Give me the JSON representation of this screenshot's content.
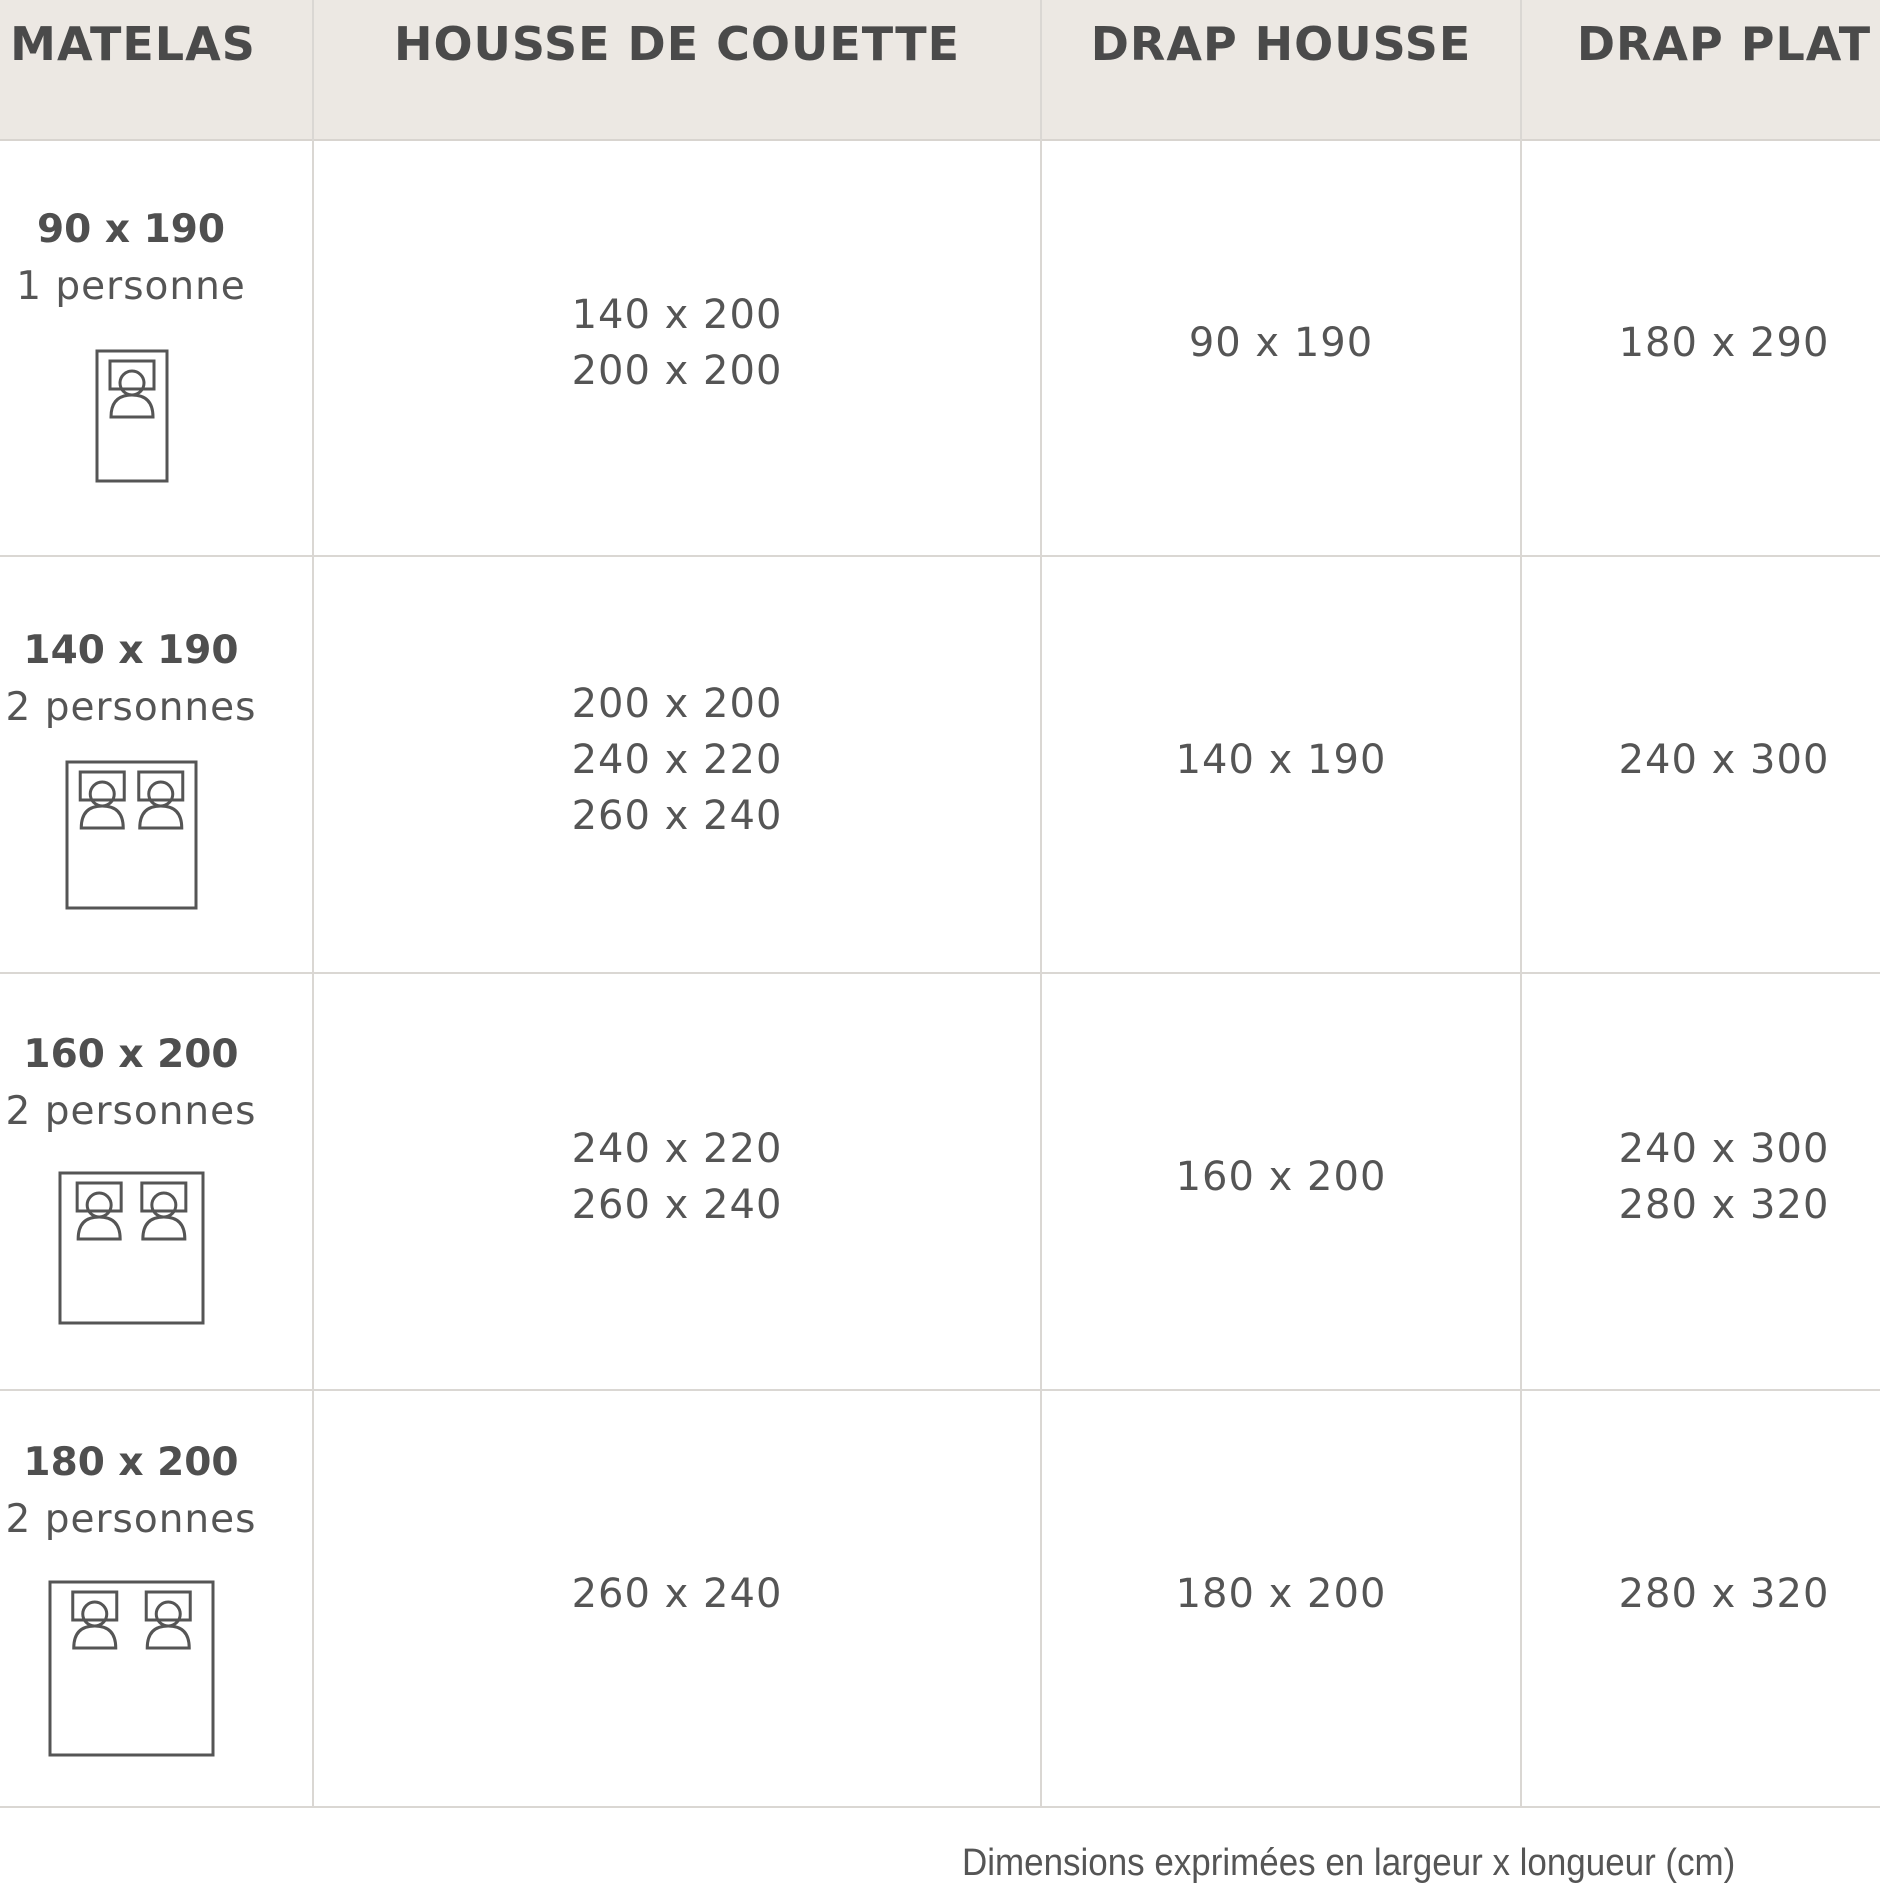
{
  "headers": [
    "MATELAS",
    "HOUSSE DE COUETTE",
    "DRAP HOUSSE",
    "DRAP PLAT"
  ],
  "rows": [
    {
      "matelas": "90 x 190",
      "personnes": "1 personne",
      "persons_in_icon": 1,
      "housse": [
        "140 x 200",
        "200 x 200"
      ],
      "drap_housse": [
        "90 x 190"
      ],
      "drap_plat": [
        "180 x 290"
      ]
    },
    {
      "matelas": "140 x 190",
      "personnes": "2 personnes",
      "persons_in_icon": 2,
      "housse": [
        "200 x 200",
        "240 x 220",
        "260 x 240"
      ],
      "drap_housse": [
        "140 x 190"
      ],
      "drap_plat": [
        "240 x 300"
      ]
    },
    {
      "matelas": "160 x 200",
      "personnes": "2 personnes",
      "persons_in_icon": 2,
      "housse": [
        "240 x 220",
        "260 x 240"
      ],
      "drap_housse": [
        "160 x 200"
      ],
      "drap_plat": [
        "240 x 300",
        "280 x 320"
      ]
    },
    {
      "matelas": "180 x 200",
      "personnes": "2 personnes",
      "persons_in_icon": 2,
      "housse": [
        "260 x 240"
      ],
      "drap_housse": [
        "180 x 200"
      ],
      "drap_plat": [
        "280 x 320"
      ]
    }
  ],
  "footer": "Dimensions exprimées en largeur x longueur (cm)",
  "colors": {
    "header_bg": "#ece8e3",
    "text": "#555555",
    "grid": "#dad7d3"
  }
}
